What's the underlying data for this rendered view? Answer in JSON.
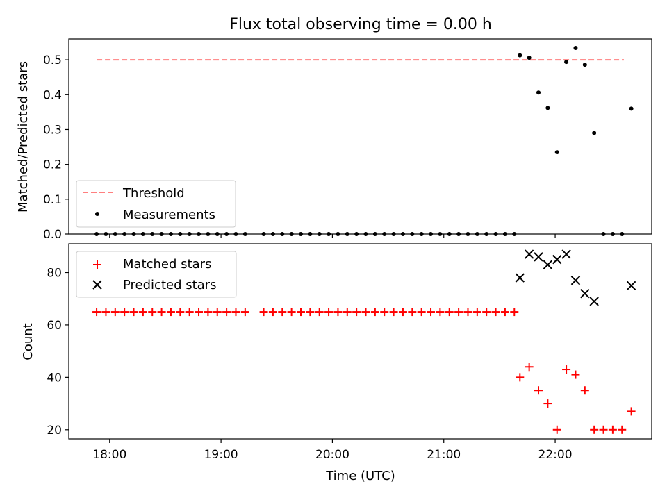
{
  "title": "Flux total observing time = 0.00 h",
  "chart_data": [
    {
      "type": "scatter",
      "panel": "top",
      "title": "Flux total observing time = 0.00 h",
      "xlabel": "",
      "ylabel": "Matched/Predicted stars",
      "ylim": [
        0,
        0.56
      ],
      "yticks": [
        0.0,
        0.1,
        0.2,
        0.3,
        0.4,
        0.5
      ],
      "ytick_labels": [
        "0.0",
        "0.1",
        "0.2",
        "0.3",
        "0.4",
        "0.5"
      ],
      "xlim": [
        "17:38",
        "22:52"
      ],
      "xticks": [
        "18:00",
        "19:00",
        "20:00",
        "21:00",
        "22:00"
      ],
      "legend": {
        "placement": "lower-left",
        "entries": [
          "Threshold",
          "Measurements"
        ]
      },
      "series": [
        {
          "name": "Threshold",
          "kind": "dashed-line",
          "color": "#ff7f7f",
          "x": [
            "17:53",
            "22:37"
          ],
          "y": [
            0.5,
            0.5
          ]
        },
        {
          "name": "Measurements",
          "kind": "dots",
          "color": "#000000",
          "x": [
            "17:53",
            "17:58",
            "18:03",
            "18:08",
            "18:13",
            "18:18",
            "18:23",
            "18:28",
            "18:33",
            "18:38",
            "18:43",
            "18:48",
            "18:53",
            "18:58",
            "19:03",
            "19:08",
            "19:13",
            "19:23",
            "19:28",
            "19:33",
            "19:38",
            "19:43",
            "19:48",
            "19:53",
            "19:58",
            "20:03",
            "20:08",
            "20:13",
            "20:18",
            "20:23",
            "20:28",
            "20:33",
            "20:38",
            "20:43",
            "20:48",
            "20:53",
            "20:58",
            "21:03",
            "21:08",
            "21:13",
            "21:18",
            "21:23",
            "21:28",
            "21:33",
            "21:38",
            "21:41",
            "21:46",
            "21:51",
            "21:56",
            "22:01",
            "22:06",
            "22:11",
            "22:16",
            "22:21",
            "22:26",
            "22:31",
            "22:36",
            "22:41"
          ],
          "y": [
            0,
            0,
            0,
            0,
            0,
            0,
            0,
            0,
            0,
            0,
            0,
            0,
            0,
            0,
            0,
            0,
            0,
            0,
            0,
            0,
            0,
            0,
            0,
            0,
            0,
            0,
            0,
            0,
            0,
            0,
            0,
            0,
            0,
            0,
            0,
            0,
            0,
            0,
            0,
            0,
            0,
            0,
            0,
            0,
            0,
            0.513,
            0.506,
            0.406,
            0.362,
            0.235,
            0.494,
            0.534,
            0.486,
            0.29,
            0,
            0,
            0,
            0.36
          ]
        }
      ]
    },
    {
      "type": "scatter",
      "panel": "bottom",
      "xlabel": "Time (UTC)",
      "ylabel": "Count",
      "ylim": [
        16.5,
        91
      ],
      "yticks": [
        20,
        40,
        60,
        80
      ],
      "ytick_labels": [
        "20",
        "40",
        "60",
        "80"
      ],
      "xlim": [
        "17:38",
        "22:52"
      ],
      "xticks": [
        "18:00",
        "19:00",
        "20:00",
        "21:00",
        "22:00"
      ],
      "xtick_labels": [
        "18:00",
        "19:00",
        "20:00",
        "21:00",
        "22:00"
      ],
      "legend": {
        "placement": "upper-left",
        "entries": [
          "Matched stars",
          "Predicted stars"
        ]
      },
      "series": [
        {
          "name": "Matched stars",
          "marker": "plus",
          "color": "#ff0000",
          "x": [
            "17:53",
            "17:58",
            "18:03",
            "18:08",
            "18:13",
            "18:18",
            "18:23",
            "18:28",
            "18:33",
            "18:38",
            "18:43",
            "18:48",
            "18:53",
            "18:58",
            "19:03",
            "19:08",
            "19:13",
            "19:23",
            "19:28",
            "19:33",
            "19:38",
            "19:43",
            "19:48",
            "19:53",
            "19:58",
            "20:03",
            "20:08",
            "20:13",
            "20:18",
            "20:23",
            "20:28",
            "20:33",
            "20:38",
            "20:43",
            "20:48",
            "20:53",
            "20:58",
            "21:03",
            "21:08",
            "21:13",
            "21:18",
            "21:23",
            "21:28",
            "21:33",
            "21:38",
            "21:41",
            "21:46",
            "21:51",
            "21:56",
            "22:01",
            "22:06",
            "22:11",
            "22:16",
            "22:21",
            "22:26",
            "22:31",
            "22:36",
            "22:41"
          ],
          "y": [
            65,
            65,
            65,
            65,
            65,
            65,
            65,
            65,
            65,
            65,
            65,
            65,
            65,
            65,
            65,
            65,
            65,
            65,
            65,
            65,
            65,
            65,
            65,
            65,
            65,
            65,
            65,
            65,
            65,
            65,
            65,
            65,
            65,
            65,
            65,
            65,
            65,
            65,
            65,
            65,
            65,
            65,
            65,
            65,
            65,
            40,
            44,
            35,
            30,
            20,
            43,
            41,
            35,
            20,
            20,
            20,
            20,
            27
          ]
        },
        {
          "name": "Predicted stars",
          "marker": "x",
          "color": "#000000",
          "x": [
            "21:41",
            "21:46",
            "21:51",
            "21:56",
            "22:01",
            "22:06",
            "22:11",
            "22:16",
            "22:21",
            "22:41"
          ],
          "y": [
            78,
            87,
            86,
            83,
            85,
            87,
            77,
            72,
            69,
            75
          ]
        }
      ]
    }
  ]
}
